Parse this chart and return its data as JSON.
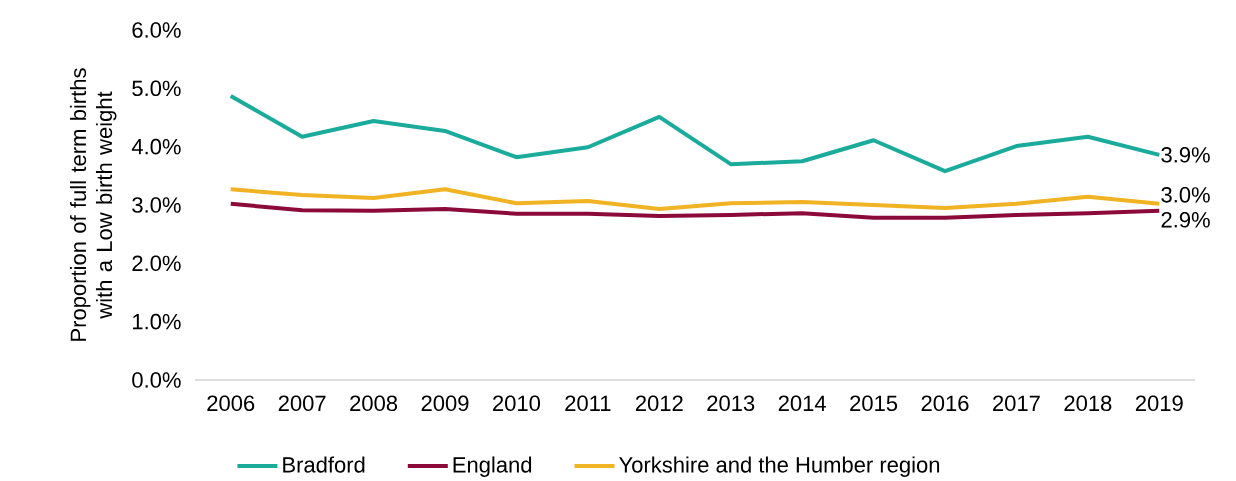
{
  "chart_data": {
    "type": "line",
    "ylabel": "Proportion of full term births with a Low birth weight",
    "categories": [
      "2006",
      "2007",
      "2008",
      "2009",
      "2010",
      "2011",
      "2012",
      "2013",
      "2014",
      "2015",
      "2016",
      "2017",
      "2018",
      "2019"
    ],
    "ylim": [
      0,
      6
    ],
    "yticks": [
      {
        "value": 0,
        "label": "0.0%"
      },
      {
        "value": 1,
        "label": "1.0%"
      },
      {
        "value": 2,
        "label": "2.0%"
      },
      {
        "value": 3,
        "label": "3.0%"
      },
      {
        "value": 4,
        "label": "4.0%"
      },
      {
        "value": 5,
        "label": "5.0%"
      },
      {
        "value": 6,
        "label": "6.0%"
      }
    ],
    "grid": false,
    "legend": "bottom",
    "marker": "none",
    "line_style": "solid",
    "series": [
      {
        "name": "Bradford",
        "color": "#1aab9b",
        "values": [
          4.87,
          4.17,
          4.44,
          4.27,
          3.82,
          3.99,
          4.51,
          3.7,
          3.75,
          4.11,
          3.58,
          4.01,
          4.17,
          3.86
        ],
        "value_labels": [
          null,
          null,
          null,
          null,
          null,
          null,
          null,
          null,
          null,
          null,
          null,
          null,
          null,
          "3.9%"
        ]
      },
      {
        "name": "England",
        "color": "#8b0a3a",
        "values": [
          3.02,
          2.91,
          2.9,
          2.93,
          2.85,
          2.85,
          2.81,
          2.83,
          2.86,
          2.78,
          2.78,
          2.83,
          2.86,
          2.9
        ],
        "value_labels": [
          null,
          null,
          null,
          null,
          null,
          null,
          null,
          null,
          null,
          null,
          null,
          null,
          null,
          "2.9%"
        ]
      },
      {
        "name": "Yorkshire and the Humber region",
        "color": "#f0b323",
        "values": [
          3.27,
          3.17,
          3.12,
          3.27,
          3.03,
          3.07,
          2.93,
          3.03,
          3.05,
          3.0,
          2.95,
          3.02,
          3.14,
          3.02
        ],
        "value_labels": [
          null,
          null,
          null,
          null,
          null,
          null,
          null,
          null,
          null,
          null,
          null,
          null,
          null,
          "3.0%"
        ]
      }
    ]
  }
}
